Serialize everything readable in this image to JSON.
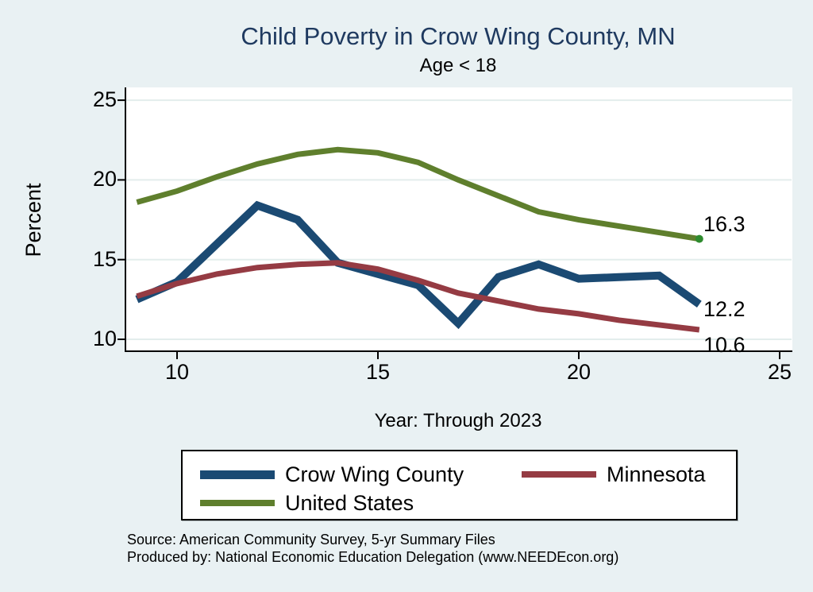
{
  "title": "Child Poverty in Crow Wing County, MN",
  "subtitle": "Age < 18",
  "y_axis_title": "Percent",
  "x_axis_title": "Year: Through 2023",
  "end_labels": {
    "united_states": "16.3",
    "crow_wing_county": "12.2",
    "minnesota": "10.6"
  },
  "source": {
    "line1": "Source: American Community Survey, 5-yr Summary Files",
    "line2": "Produced by: National Economic Education Delegation (www.NEEDEcon.org)"
  },
  "legend": {
    "items": [
      {
        "label": "Crow Wing County",
        "series": 0
      },
      {
        "label": "Minnesota",
        "series": 1
      },
      {
        "label": "United States",
        "series": 2
      }
    ]
  },
  "colors": {
    "background": "#e9f1f3",
    "plot_background": "#ffffff",
    "gridline": "#e3edec",
    "axis": "#000000",
    "title": "#1f3a60",
    "crow_wing_county": "#1b4a73",
    "minnesota": "#953b43",
    "united_states": "#5f7f2d",
    "end_dot": "#2e8b2e"
  },
  "chart_data": {
    "type": "line",
    "title": "Child Poverty in Crow Wing County, MN",
    "subtitle": "Age < 18",
    "xlabel": "Year: Through 2023",
    "ylabel": "Percent",
    "grid": "horizontal",
    "legend_position": "bottom",
    "xlim": [
      8.7,
      25.3
    ],
    "ylim": [
      9.2,
      25.9
    ],
    "x_ticks": [
      10,
      15,
      20,
      25
    ],
    "y_ticks": [
      10,
      15,
      20,
      25
    ],
    "x": [
      9,
      10,
      11,
      12,
      13,
      14,
      15,
      16,
      17,
      18,
      19,
      20,
      21,
      22,
      23
    ],
    "series": [
      {
        "name": "Crow Wing County",
        "color": "#1b4a73",
        "width": 10,
        "values": [
          12.5,
          13.6,
          16.0,
          18.4,
          17.5,
          14.8,
          14.1,
          13.4,
          11.0,
          13.9,
          14.7,
          13.8,
          13.9,
          14.0,
          12.2
        ],
        "end_label": "12.2"
      },
      {
        "name": "Minnesota",
        "color": "#953b43",
        "width": 7,
        "values": [
          12.7,
          13.5,
          14.1,
          14.5,
          14.7,
          14.8,
          14.4,
          13.7,
          12.9,
          12.4,
          11.9,
          11.6,
          11.2,
          10.9,
          10.6
        ],
        "end_label": "10.6"
      },
      {
        "name": "United States",
        "color": "#5f7f2d",
        "width": 7,
        "values": [
          18.6,
          19.3,
          20.2,
          21.0,
          21.6,
          21.9,
          21.7,
          21.1,
          20.0,
          19.0,
          18.0,
          17.5,
          17.1,
          16.7,
          16.3
        ],
        "end_label": "16.3",
        "end_dot": true,
        "end_dot_color": "#2e8b2e"
      }
    ]
  }
}
